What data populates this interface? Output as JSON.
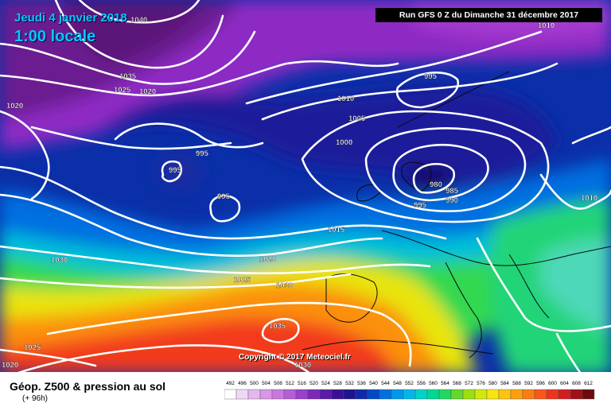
{
  "header": {
    "date": "Jeudi 4 janvier 2018",
    "time": "1:00 locale",
    "run": "Run GFS 0 Z du Dimanche 31 décembre 2017"
  },
  "copyright": "Copyright © 2017 Meteociel.fr",
  "legend": {
    "title": "Géop. Z500 & pression au sol",
    "subtitle": "(+ 96h)",
    "scale": [
      "492",
      "496",
      "500",
      "504",
      "508",
      "512",
      "516",
      "520",
      "524",
      "528",
      "532",
      "536",
      "540",
      "544",
      "548",
      "552",
      "556",
      "560",
      "564",
      "568",
      "572",
      "576",
      "580",
      "584",
      "588",
      "592",
      "596",
      "600",
      "604",
      "608",
      "612"
    ],
    "colors": [
      "#ffffff",
      "#f0d8f4",
      "#e4b8ee",
      "#d896e6",
      "#c878e0",
      "#b45ed8",
      "#9a40cc",
      "#7a28b8",
      "#5a1aa6",
      "#3a1096",
      "#1e148e",
      "#0e2aa8",
      "#0048c8",
      "#0070e0",
      "#0098ec",
      "#00b8e8",
      "#00d2c8",
      "#00d890",
      "#20d860",
      "#64d82c",
      "#9ce010",
      "#d0e80c",
      "#f8e410",
      "#fcc410",
      "#fca010",
      "#fc7c14",
      "#f85818",
      "#ec3420",
      "#d01e20",
      "#a01018",
      "#6e0a10"
    ]
  },
  "isobars": [
    "1040",
    "1035",
    "1025",
    "1020",
    "1020",
    "995",
    "995",
    "995",
    "995",
    "1010",
    "1005",
    "1000",
    "980",
    "985",
    "990",
    "995",
    "1010",
    "1015",
    "1020",
    "1030",
    "1025",
    "1030",
    "1035",
    "1030",
    "1025",
    "1020",
    "1010"
  ]
}
